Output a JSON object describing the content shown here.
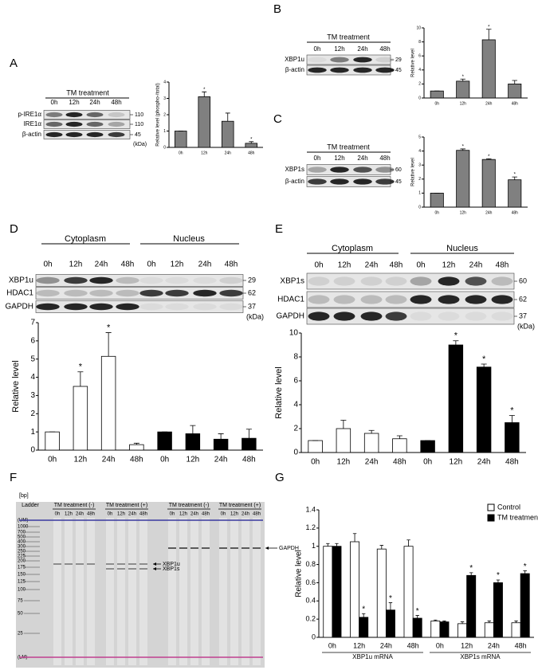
{
  "panels": [
    "A",
    "B",
    "C",
    "D",
    "E",
    "F",
    "G"
  ],
  "blots": [
    {
      "header": [
        "TM treatment"
      ],
      "lanes": [
        "0h",
        "12h",
        "24h",
        "48h"
      ],
      "rows": [
        "p-IRE1α",
        "IRE1α",
        "β-actin"
      ],
      "sizes": [
        110,
        110,
        45
      ],
      "unit": "(kDa)"
    },
    {
      "header": [
        "TM treatment"
      ],
      "lanes": [
        "0h",
        "12h",
        "24h",
        "48h"
      ],
      "rows": [
        "XBP1u",
        "β-actin"
      ],
      "sizes": [
        29,
        45
      ]
    },
    {
      "header": [
        "TM treatment"
      ],
      "lanes": [
        "0h",
        "12h",
        "24h",
        "48h"
      ],
      "rows": [
        "XBP1s",
        "β-actin"
      ],
      "sizes": [
        60,
        45
      ]
    },
    {
      "header": [
        "Cytoplasm",
        "Nucleus"
      ],
      "lanes": [
        "0h",
        "12h",
        "24h",
        "48h",
        "0h",
        "12h",
        "24h",
        "48h"
      ],
      "rows": [
        "XBP1u",
        "HDAC1",
        "GAPDH"
      ],
      "sizes": [
        29,
        62,
        37
      ],
      "unit": "(kDa)"
    },
    {
      "header": [
        "Cytoplasm",
        "Nucleus"
      ],
      "lanes": [
        "0h",
        "12h",
        "24h",
        "48h",
        "0h",
        "12h",
        "24h",
        "48h"
      ],
      "rows": [
        "XBP1s",
        "HDAC1",
        "GAPDH"
      ],
      "sizes": [
        60,
        62,
        37
      ],
      "unit": "(kDa)"
    }
  ],
  "gel": {
    "bp": "[bp]",
    "ladder": "Ladder",
    "groups": [
      "TM treatment (-)",
      "TM treatment (+)",
      "TM treatment (-)",
      "TM treatment (+)"
    ],
    "lanes": [
      "0h",
      "12h",
      "24h",
      "48h",
      "0h",
      "12h",
      "24h",
      "48h",
      "0h",
      "12h",
      "24h",
      "48h",
      "0h",
      "12h",
      "24h",
      "48h"
    ],
    "ladder_labels": [
      "(UM)",
      1000,
      700,
      500,
      400,
      300,
      250,
      225,
      200,
      175,
      150,
      125,
      100,
      75,
      50,
      25,
      "(LM)"
    ],
    "bands": [
      "XBP1u",
      "XBP1s",
      "GAPDH"
    ]
  },
  "chart_data": [
    {
      "type": "bar",
      "ylabel": "Relative level (phospho-/total)",
      "categories": [
        "0h",
        "12h",
        "24h",
        "48h"
      ],
      "series": [
        {
          "color": "#808080",
          "values": [
            1,
            3.1,
            1.6,
            0.25
          ],
          "errors": [
            0,
            0.3,
            0.5,
            0.1
          ],
          "stars": [
            null,
            "*",
            null,
            "*"
          ]
        }
      ],
      "ylim": [
        0,
        4
      ],
      "yticks": [
        0,
        1,
        2,
        3,
        4
      ]
    },
    {
      "type": "bar",
      "ylabel": "Relative level",
      "categories": [
        "0h",
        "12h",
        "24h",
        "48h"
      ],
      "series": [
        {
          "color": "#808080",
          "values": [
            1,
            2.4,
            8.3,
            2
          ],
          "errors": [
            0,
            0.3,
            1.5,
            0.5
          ],
          "stars": [
            null,
            "*",
            "*",
            null
          ]
        }
      ],
      "ylim": [
        0,
        10
      ],
      "yticks": [
        0,
        2,
        4,
        6,
        8,
        10
      ]
    },
    {
      "type": "bar",
      "ylabel": "Relative level",
      "categories": [
        "0h",
        "12h",
        "24h",
        "48h"
      ],
      "series": [
        {
          "color": "#808080",
          "values": [
            1,
            4.05,
            3.4,
            1.95
          ],
          "errors": [
            0,
            0.1,
            0.05,
            0.2
          ],
          "stars": [
            null,
            "*",
            "*",
            "*"
          ]
        }
      ],
      "ylim": [
        0,
        5
      ],
      "yticks": [
        0,
        1,
        2,
        3,
        4,
        5
      ]
    },
    {
      "type": "bar",
      "ylabel": "Relative level",
      "categories": [
        "0h",
        "12h",
        "24h",
        "48h",
        "0h",
        "12h",
        "24h",
        "48h"
      ],
      "series": [
        {
          "colors": [
            "#ffffff",
            "#ffffff",
            "#ffffff",
            "#ffffff",
            "#000000",
            "#000000",
            "#000000",
            "#000000"
          ],
          "values": [
            1,
            3.5,
            5.15,
            0.3,
            1,
            0.9,
            0.6,
            0.65
          ],
          "errors": [
            0,
            0.8,
            1.3,
            0.08,
            0,
            0.45,
            0.3,
            0.5
          ],
          "stars": [
            null,
            "*",
            "*",
            null,
            null,
            null,
            null,
            null
          ]
        }
      ],
      "ylim": [
        0,
        7
      ],
      "yticks": [
        0,
        1,
        2,
        3,
        4,
        5,
        6,
        7
      ]
    },
    {
      "type": "bar",
      "ylabel": "Relative level",
      "categories": [
        "0h",
        "12h",
        "24h",
        "48h",
        "0h",
        "12h",
        "24h",
        "48h"
      ],
      "series": [
        {
          "colors": [
            "#ffffff",
            "#ffffff",
            "#ffffff",
            "#ffffff",
            "#000000",
            "#000000",
            "#000000",
            "#000000"
          ],
          "values": [
            1,
            2,
            1.6,
            1.15,
            1,
            9,
            7.15,
            2.5
          ],
          "errors": [
            0,
            0.7,
            0.25,
            0.25,
            0,
            0.35,
            0.25,
            0.6
          ],
          "stars": [
            null,
            null,
            null,
            null,
            null,
            "*",
            "*",
            "*"
          ]
        }
      ],
      "ylim": [
        0,
        10
      ],
      "yticks": [
        0,
        2,
        4,
        6,
        8,
        10
      ]
    },
    {
      "type": "bar",
      "ylabel": "Relative level",
      "categories": [
        "0h",
        "12h",
        "24h",
        "48h",
        "0h",
        "12h",
        "24h",
        "48h"
      ],
      "group_labels": [
        "XBP1u mRNA",
        "XBP1s mRNA"
      ],
      "legend": "upper right",
      "series": [
        {
          "name": "Control",
          "color": "#ffffff",
          "values": [
            1,
            1.05,
            0.97,
            1,
            0.18,
            0.15,
            0.16,
            0.16
          ],
          "errors": [
            0.03,
            0.09,
            0.04,
            0.07,
            0.01,
            0.02,
            0.02,
            0.02
          ],
          "stars": [
            null,
            null,
            null,
            null,
            null,
            null,
            null,
            null
          ]
        },
        {
          "name": "TM treatment",
          "color": "#000000",
          "values": [
            1,
            0.22,
            0.3,
            0.21,
            0.17,
            0.68,
            0.6,
            0.7
          ],
          "errors": [
            0.03,
            0.04,
            0.08,
            0.03,
            0.01,
            0.03,
            0.03,
            0.03
          ],
          "stars": [
            null,
            "*",
            "*",
            "*",
            null,
            "*",
            "*",
            "*"
          ]
        }
      ],
      "ylim": [
        0,
        1.4
      ],
      "yticks": [
        0,
        0.2,
        0.4,
        0.6,
        0.8,
        1,
        1.2,
        1.4
      ]
    }
  ]
}
